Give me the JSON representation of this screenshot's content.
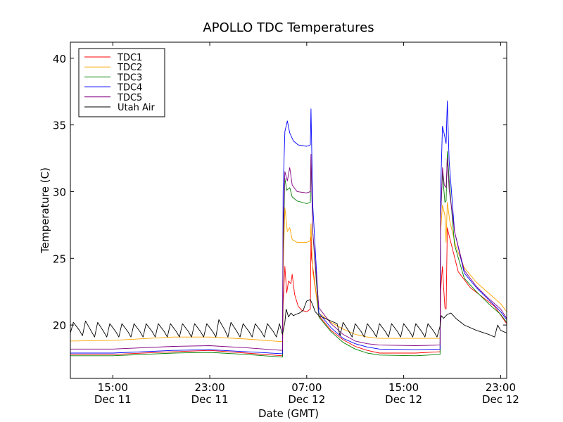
{
  "chart_data": {
    "type": "line",
    "title": "APOLLO TDC Temperatures",
    "xlabel": "Date (GMT)",
    "ylabel": "Temperature (C)",
    "xlim": [
      11.5,
      47.5
    ],
    "ylim": [
      16,
      41.2
    ],
    "yticks": [
      20,
      25,
      30,
      35,
      40
    ],
    "xticks": [
      {
        "x": 15,
        "line1": "15:00",
        "line2": "Dec 11"
      },
      {
        "x": 23,
        "line1": "23:00",
        "line2": "Dec 11"
      },
      {
        "x": 31,
        "line1": "07:00",
        "line2": "Dec 12"
      },
      {
        "x": 39,
        "line1": "15:00",
        "line2": "Dec 12"
      },
      {
        "x": 47,
        "line1": "23:00",
        "line2": "Dec 12"
      }
    ],
    "legend_position": "top-left",
    "series": [
      {
        "name": "TDC1",
        "color": "#ff0000",
        "points": [
          [
            11.5,
            17.8
          ],
          [
            15,
            17.8
          ],
          [
            20,
            18.0
          ],
          [
            23,
            18.1
          ],
          [
            26,
            17.9
          ],
          [
            29,
            17.7
          ],
          [
            29.05,
            21.5
          ],
          [
            29.2,
            24.4
          ],
          [
            29.35,
            22.4
          ],
          [
            29.5,
            23.3
          ],
          [
            29.7,
            23.1
          ],
          [
            29.8,
            23.8
          ],
          [
            30,
            22.3
          ],
          [
            30.3,
            21.4
          ],
          [
            30.6,
            21.1
          ],
          [
            31.0,
            21.0
          ],
          [
            31.3,
            21.2
          ],
          [
            31.35,
            26.6
          ],
          [
            31.4,
            25.0
          ],
          [
            31.6,
            23.6
          ],
          [
            32.0,
            20.7
          ],
          [
            33,
            19.6
          ],
          [
            34,
            18.9
          ],
          [
            35,
            18.4
          ],
          [
            36,
            18.1
          ],
          [
            37,
            17.9
          ],
          [
            40,
            17.9
          ],
          [
            42,
            18.0
          ],
          [
            42.05,
            22.6
          ],
          [
            42.2,
            24.4
          ],
          [
            42.3,
            22.8
          ],
          [
            42.4,
            21.3
          ],
          [
            42.5,
            21.2
          ],
          [
            42.6,
            27.3
          ],
          [
            42.75,
            26.7
          ],
          [
            43.0,
            25.8
          ],
          [
            43.5,
            24.0
          ],
          [
            44.5,
            22.8
          ],
          [
            45.5,
            22.1
          ],
          [
            46.5,
            21.4
          ],
          [
            47.5,
            20.1
          ]
        ]
      },
      {
        "name": "TDC2",
        "color": "#ffa500",
        "points": [
          [
            11.5,
            18.8
          ],
          [
            15,
            18.85
          ],
          [
            20,
            19.1
          ],
          [
            23,
            19.1
          ],
          [
            26,
            18.95
          ],
          [
            29,
            18.75
          ],
          [
            29.05,
            24.0
          ],
          [
            29.2,
            28.8
          ],
          [
            29.4,
            27.0
          ],
          [
            29.6,
            27.3
          ],
          [
            29.8,
            26.4
          ],
          [
            30.2,
            26.2
          ],
          [
            31.0,
            26.2
          ],
          [
            31.3,
            26.3
          ],
          [
            31.35,
            27.6
          ],
          [
            31.5,
            24.0
          ],
          [
            32.0,
            20.9
          ],
          [
            33,
            20.2
          ],
          [
            34,
            19.7
          ],
          [
            35,
            19.3
          ],
          [
            36,
            19.1
          ],
          [
            37,
            19.0
          ],
          [
            40,
            19.0
          ],
          [
            42,
            19.0
          ],
          [
            42.05,
            27.0
          ],
          [
            42.2,
            29.0
          ],
          [
            42.4,
            28.2
          ],
          [
            42.5,
            26.2
          ],
          [
            42.6,
            29.2
          ],
          [
            42.8,
            27.8
          ],
          [
            43.3,
            25.9
          ],
          [
            44,
            24.3
          ],
          [
            45,
            23.2
          ],
          [
            46,
            22.4
          ],
          [
            47,
            21.6
          ],
          [
            47.5,
            21.0
          ]
        ]
      },
      {
        "name": "TDC3",
        "color": "#008000",
        "points": [
          [
            11.5,
            17.7
          ],
          [
            15,
            17.7
          ],
          [
            20,
            17.9
          ],
          [
            23,
            17.95
          ],
          [
            26,
            17.8
          ],
          [
            29,
            17.6
          ],
          [
            29.05,
            25.5
          ],
          [
            29.2,
            31.0
          ],
          [
            29.35,
            30.1
          ],
          [
            29.6,
            30.3
          ],
          [
            29.8,
            29.6
          ],
          [
            30.2,
            29.3
          ],
          [
            31.0,
            29.1
          ],
          [
            31.3,
            29.2
          ],
          [
            31.35,
            32.5
          ],
          [
            31.5,
            27.0
          ],
          [
            32.0,
            20.6
          ],
          [
            33,
            19.5
          ],
          [
            34,
            18.7
          ],
          [
            35,
            18.2
          ],
          [
            36,
            17.9
          ],
          [
            37,
            17.75
          ],
          [
            40,
            17.7
          ],
          [
            42,
            17.8
          ],
          [
            42.05,
            28.0
          ],
          [
            42.2,
            31.4
          ],
          [
            42.4,
            29.2
          ],
          [
            42.5,
            29.3
          ],
          [
            42.6,
            33.0
          ],
          [
            42.75,
            30.9
          ],
          [
            43.2,
            26.0
          ],
          [
            44,
            23.5
          ],
          [
            45,
            22.5
          ],
          [
            46,
            21.6
          ],
          [
            47,
            20.8
          ],
          [
            47.5,
            20.2
          ]
        ]
      },
      {
        "name": "TDC4",
        "color": "#0000ff",
        "points": [
          [
            11.5,
            17.9
          ],
          [
            15,
            17.9
          ],
          [
            20,
            18.1
          ],
          [
            23,
            18.15
          ],
          [
            26,
            18.0
          ],
          [
            29,
            17.85
          ],
          [
            29.05,
            30.0
          ],
          [
            29.2,
            34.5
          ],
          [
            29.4,
            35.3
          ],
          [
            29.6,
            34.4
          ],
          [
            29.9,
            33.8
          ],
          [
            30.3,
            33.5
          ],
          [
            31.0,
            33.4
          ],
          [
            31.3,
            33.5
          ],
          [
            31.35,
            36.2
          ],
          [
            31.5,
            29.0
          ],
          [
            32.0,
            20.9
          ],
          [
            33,
            19.8
          ],
          [
            34,
            19.0
          ],
          [
            35,
            18.6
          ],
          [
            36,
            18.35
          ],
          [
            37,
            18.2
          ],
          [
            40,
            18.15
          ],
          [
            42,
            18.2
          ],
          [
            42.05,
            30.0
          ],
          [
            42.2,
            34.9
          ],
          [
            42.35,
            34.3
          ],
          [
            42.5,
            33.6
          ],
          [
            42.6,
            36.8
          ],
          [
            42.75,
            32.3
          ],
          [
            43.2,
            27.0
          ],
          [
            44,
            23.9
          ],
          [
            45,
            22.8
          ],
          [
            46,
            21.9
          ],
          [
            47,
            21.0
          ],
          [
            47.5,
            20.4
          ]
        ]
      },
      {
        "name": "TDC5",
        "color": "#800080",
        "points": [
          [
            11.5,
            18.2
          ],
          [
            15,
            18.2
          ],
          [
            20,
            18.4
          ],
          [
            23,
            18.45
          ],
          [
            26,
            18.3
          ],
          [
            29,
            18.1
          ],
          [
            29.05,
            27.0
          ],
          [
            29.2,
            31.5
          ],
          [
            29.4,
            30.8
          ],
          [
            29.6,
            31.8
          ],
          [
            29.8,
            30.5
          ],
          [
            30.2,
            30.0
          ],
          [
            31.0,
            29.9
          ],
          [
            31.3,
            30.0
          ],
          [
            31.35,
            32.8
          ],
          [
            31.5,
            27.0
          ],
          [
            32.0,
            21.3
          ],
          [
            33,
            20.1
          ],
          [
            34,
            19.3
          ],
          [
            35,
            18.8
          ],
          [
            36,
            18.6
          ],
          [
            37,
            18.5
          ],
          [
            40,
            18.45
          ],
          [
            42,
            18.5
          ],
          [
            42.05,
            28.0
          ],
          [
            42.2,
            31.8
          ],
          [
            42.35,
            30.5
          ],
          [
            42.5,
            30.3
          ],
          [
            42.6,
            32.5
          ],
          [
            42.75,
            30.2
          ],
          [
            43.2,
            27.0
          ],
          [
            44,
            24.1
          ],
          [
            45,
            22.9
          ],
          [
            46,
            22.0
          ],
          [
            47,
            21.2
          ],
          [
            47.5,
            20.5
          ]
        ]
      },
      {
        "name": "Utah Air",
        "color": "#000000",
        "points": [
          [
            11.5,
            19.4
          ],
          [
            11.75,
            20.2
          ],
          [
            12.25,
            19.6
          ],
          [
            12.5,
            19.2
          ],
          [
            12.75,
            20.3
          ],
          [
            13.25,
            19.5
          ],
          [
            13.5,
            19.1
          ],
          [
            13.75,
            20.2
          ],
          [
            14.25,
            19.5
          ],
          [
            14.5,
            19.1
          ],
          [
            14.75,
            20.1
          ],
          [
            15.25,
            19.5
          ],
          [
            15.5,
            19.1
          ],
          [
            15.75,
            20.1
          ],
          [
            16.25,
            19.5
          ],
          [
            16.5,
            19.1
          ],
          [
            16.75,
            20.1
          ],
          [
            17.25,
            19.5
          ],
          [
            17.5,
            19.1
          ],
          [
            17.75,
            20.1
          ],
          [
            18.25,
            19.5
          ],
          [
            18.5,
            19.1
          ],
          [
            18.75,
            20.1
          ],
          [
            19.25,
            19.5
          ],
          [
            19.5,
            19.1
          ],
          [
            19.75,
            20.1
          ],
          [
            20.25,
            19.5
          ],
          [
            20.5,
            19.1
          ],
          [
            20.75,
            20.1
          ],
          [
            21.25,
            19.5
          ],
          [
            21.5,
            19.1
          ],
          [
            21.75,
            20.1
          ],
          [
            22.25,
            19.5
          ],
          [
            22.5,
            19.1
          ],
          [
            22.75,
            20.1
          ],
          [
            23.25,
            19.5
          ],
          [
            23.5,
            19.1
          ],
          [
            23.75,
            20.4
          ],
          [
            24.25,
            19.6
          ],
          [
            24.5,
            19.1
          ],
          [
            24.75,
            20.2
          ],
          [
            25.25,
            19.5
          ],
          [
            25.5,
            19.1
          ],
          [
            25.75,
            20.1
          ],
          [
            26.25,
            19.5
          ],
          [
            26.5,
            19.1
          ],
          [
            26.75,
            20.1
          ],
          [
            27.25,
            19.5
          ],
          [
            27.5,
            19.1
          ],
          [
            27.75,
            20.1
          ],
          [
            28.25,
            19.5
          ],
          [
            28.5,
            19.1
          ],
          [
            28.75,
            20.1
          ],
          [
            29.0,
            19.3
          ],
          [
            29.2,
            20.2
          ],
          [
            29.3,
            21.2
          ],
          [
            29.5,
            20.6
          ],
          [
            29.7,
            20.9
          ],
          [
            29.9,
            20.7
          ],
          [
            30.1,
            20.8
          ],
          [
            30.4,
            20.9
          ],
          [
            30.7,
            21.1
          ],
          [
            31.0,
            21.8
          ],
          [
            31.3,
            21.9
          ],
          [
            31.5,
            21.5
          ],
          [
            31.7,
            21.0
          ],
          [
            32.0,
            20.7
          ],
          [
            33.0,
            20.3
          ],
          [
            33.5,
            20.1
          ],
          [
            33.75,
            19.2
          ],
          [
            34.0,
            20.2
          ],
          [
            34.5,
            19.5
          ],
          [
            34.75,
            19.1
          ],
          [
            35.0,
            20.1
          ],
          [
            35.5,
            19.5
          ],
          [
            35.75,
            19.1
          ],
          [
            36.0,
            20.1
          ],
          [
            36.5,
            19.5
          ],
          [
            36.75,
            19.1
          ],
          [
            37.0,
            20.1
          ],
          [
            37.5,
            19.5
          ],
          [
            37.75,
            19.1
          ],
          [
            38.0,
            20.1
          ],
          [
            38.5,
            19.5
          ],
          [
            38.75,
            19.1
          ],
          [
            39.0,
            20.1
          ],
          [
            39.5,
            19.5
          ],
          [
            39.75,
            19.1
          ],
          [
            40.0,
            20.1
          ],
          [
            40.5,
            19.5
          ],
          [
            40.75,
            19.1
          ],
          [
            41.0,
            20.1
          ],
          [
            41.5,
            19.5
          ],
          [
            41.75,
            19.1
          ],
          [
            42.0,
            19.9
          ],
          [
            42.1,
            20.7
          ],
          [
            42.3,
            20.5
          ],
          [
            42.6,
            20.8
          ],
          [
            42.9,
            20.9
          ],
          [
            43.3,
            20.5
          ],
          [
            44.0,
            20.0
          ],
          [
            45.0,
            19.6
          ],
          [
            46.0,
            19.3
          ],
          [
            46.5,
            19.1
          ],
          [
            46.75,
            20.0
          ],
          [
            47.0,
            19.6
          ],
          [
            47.5,
            19.4
          ]
        ]
      }
    ]
  }
}
